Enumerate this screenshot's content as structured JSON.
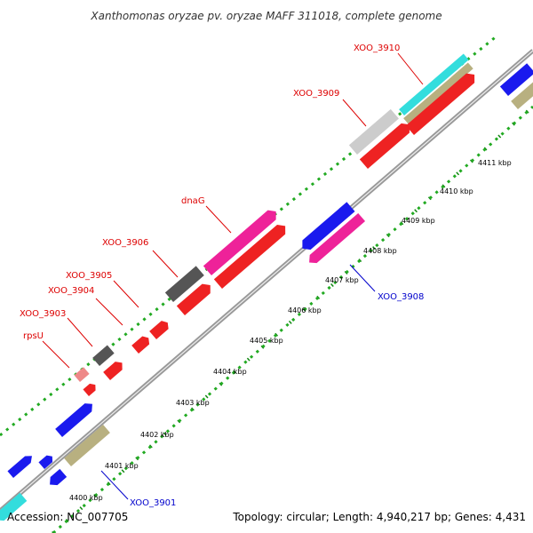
{
  "title": "Xanthomonas oryzae pv. oryzae MAFF 311018, complete genome",
  "footer": {
    "accession": "Accession: NC_007705",
    "summary": "Topology: circular; Length: 4,940,217 bp; Genes: 4,431"
  },
  "colors": {
    "label_forward": "#dd0000",
    "label_reverse": "#0000cc",
    "backbone": "#999999",
    "track_dots": "#22aa22"
  },
  "ticks": [
    "4400 kbp",
    "4401 kbp",
    "4402 kbp",
    "4403 kbp",
    "4404 kbp",
    "4405 kbp",
    "4406 kbp",
    "4407 kbp",
    "4408 kbp",
    "4409 kbp",
    "4410 kbp",
    "4411 kbp"
  ],
  "gene_labels": [
    {
      "text": "XOO_3910",
      "strand": "forward"
    },
    {
      "text": "XOO_3909",
      "strand": "forward"
    },
    {
      "text": "dnaG",
      "strand": "forward"
    },
    {
      "text": "XOO_3906",
      "strand": "forward"
    },
    {
      "text": "XOO_3905",
      "strand": "forward"
    },
    {
      "text": "XOO_3904",
      "strand": "forward"
    },
    {
      "text": "XOO_3903",
      "strand": "forward"
    },
    {
      "text": "rpsU",
      "strand": "forward"
    },
    {
      "text": "XOO_3908",
      "strand": "reverse"
    },
    {
      "text": "XOO_3901",
      "strand": "reverse"
    }
  ]
}
